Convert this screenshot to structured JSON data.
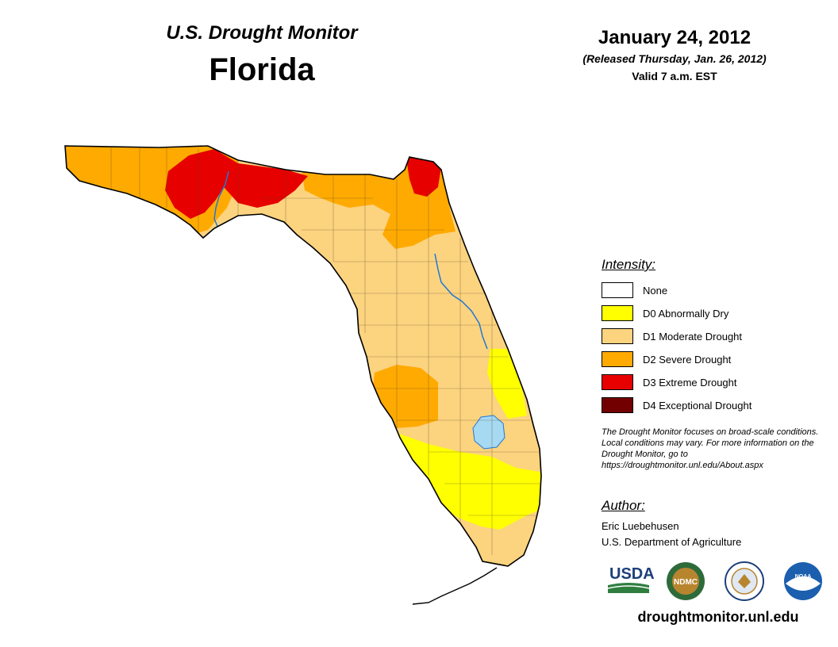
{
  "header": {
    "title": "U.S. Drought Monitor",
    "state": "Florida",
    "date": "January 24, 2012",
    "released": "(Released Thursday, Jan. 26, 2012)",
    "valid": "Valid 7 a.m. EST"
  },
  "legend": {
    "title": "Intensity:",
    "items": [
      {
        "label": "None",
        "color": "#ffffff"
      },
      {
        "label": "D0 Abnormally Dry",
        "color": "#ffff00"
      },
      {
        "label": "D1 Moderate Drought",
        "color": "#fcd37f"
      },
      {
        "label": "D2 Severe Drought",
        "color": "#ffaa00"
      },
      {
        "label": "D3 Extreme Drought",
        "color": "#e60000"
      },
      {
        "label": "D4 Exceptional Drought",
        "color": "#730000"
      }
    ]
  },
  "note": "The Drought Monitor focuses on broad-scale conditions. Local conditions may vary. For more information on the Drought Monitor, go to https://droughtmonitor.unl.edu/About.aspx",
  "author": {
    "title": "Author:",
    "name": "Eric Luebehusen",
    "org": "U.S. Department of Agriculture"
  },
  "logos": {
    "usda": "USDA",
    "ndmc": "NDMC",
    "noaa": "NOAA"
  },
  "footer": {
    "url": "droughtmonitor.unl.edu"
  },
  "map_colors": {
    "water": "#a6d9f2",
    "river": "#1f78d6",
    "outline": "#000000",
    "county": "#5a4a2a"
  }
}
